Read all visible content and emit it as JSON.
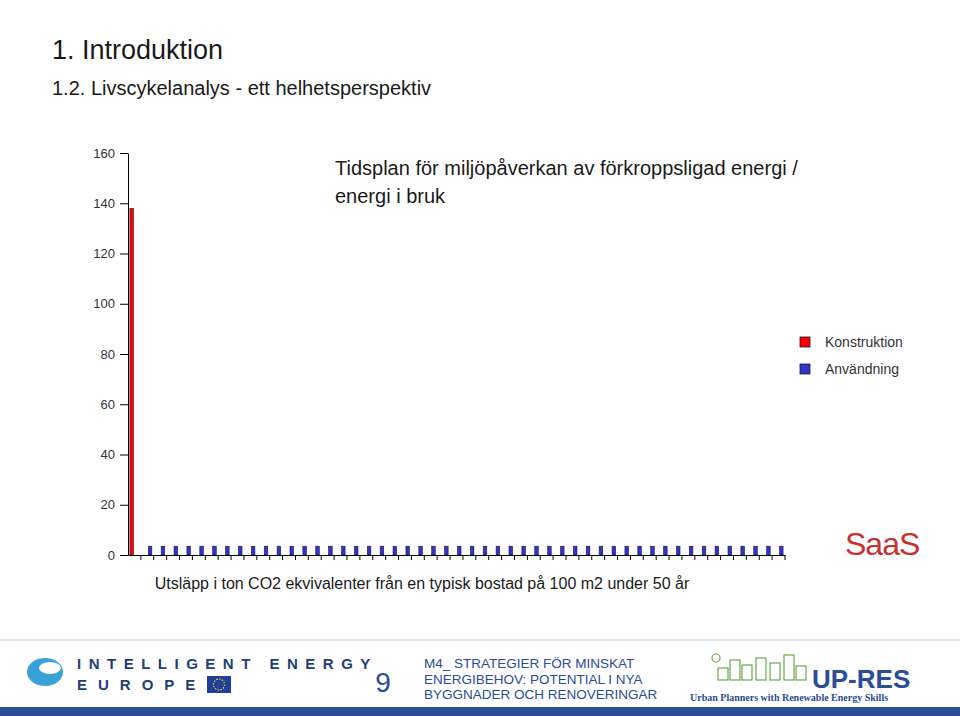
{
  "slide": {
    "heading": "1. Introduktion",
    "subheading": "1.2. Livscykelanalys - ett helhetsperspektiv",
    "logo": "SaaS",
    "footer": {
      "program_line1": "INTELLIGENT ENERGY",
      "program_line2": "EUROPE",
      "page": "9",
      "module": [
        "M4_ STRATEGIER FÖR MINSKAT",
        "ENERGIBEHOV: POTENTIAL I NYA",
        "BYGGNADER OCH RENOVERINGAR"
      ],
      "partner": "UP-RES",
      "partner_tagline": "Urban Planners with Renewable Energy Skills"
    }
  },
  "chart_data": {
    "type": "bar",
    "title": [
      "Tidsplan för miljöpåverkan av förkroppsligad energi /",
      "energi i bruk"
    ],
    "x_label": "Utsläpp i ton CO2 ekvivalenter från en typisk bostad på 100 m2 under 50 år",
    "categories": [
      null,
      null,
      null,
      null,
      null,
      null,
      null,
      null,
      null,
      null,
      null,
      null,
      null,
      null,
      null,
      null,
      null,
      null,
      null,
      null,
      null,
      null,
      null,
      null,
      null,
      null,
      null,
      null,
      null,
      null,
      null,
      null,
      null,
      null,
      null,
      null,
      null,
      null,
      null,
      null,
      null,
      null,
      null,
      null,
      null,
      null,
      null,
      null,
      null,
      null,
      null
    ],
    "series": [
      {
        "name": "Konstruktion",
        "color": "#ff0000",
        "values": [
          138,
          null,
          null,
          null,
          null,
          null,
          null,
          null,
          null,
          null,
          null,
          null,
          null,
          null,
          null,
          null,
          null,
          null,
          null,
          null,
          null,
          null,
          null,
          null,
          null,
          null,
          null,
          null,
          null,
          null,
          null,
          null,
          null,
          null,
          null,
          null,
          null,
          null,
          null,
          null,
          null,
          null,
          null,
          null,
          null,
          null,
          null,
          null,
          null,
          null,
          null
        ]
      },
      {
        "name": "Användning",
        "color": "#3333cc",
        "values": [
          null,
          3.5,
          3.5,
          3.5,
          3.5,
          3.5,
          3.5,
          3.5,
          3.5,
          3.5,
          3.5,
          3.5,
          3.5,
          3.5,
          3.5,
          3.5,
          3.5,
          3.5,
          3.5,
          3.5,
          3.5,
          3.5,
          3.5,
          3.5,
          3.5,
          3.5,
          3.5,
          3.5,
          3.5,
          3.5,
          3.5,
          3.5,
          3.5,
          3.5,
          3.5,
          3.5,
          3.5,
          3.5,
          3.5,
          3.5,
          3.5,
          3.5,
          3.5,
          3.5,
          3.5,
          3.5,
          3.5,
          3.5,
          3.5,
          3.5,
          3.5
        ]
      }
    ],
    "ylim": [
      0,
      160
    ],
    "yticks": [
      0,
      20,
      40,
      60,
      80,
      100,
      120,
      140,
      160
    ],
    "grid": false,
    "legend": "right",
    "tick_labels": "y"
  }
}
